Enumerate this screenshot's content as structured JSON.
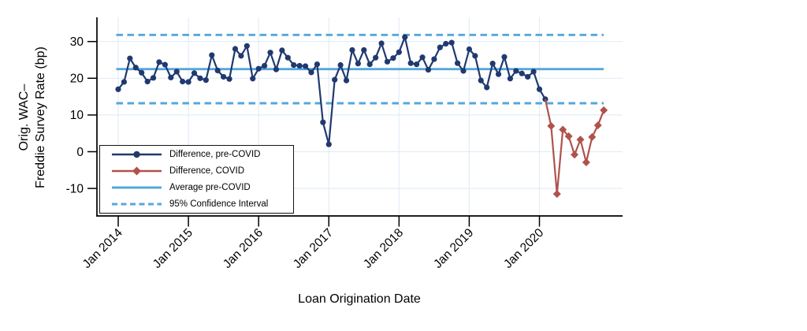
{
  "figure": {
    "x_axis_title": "Loan Origination Date",
    "y_axis_title_line1": "Orig. WAC–",
    "y_axis_title_line2": "Freddie Survey Rate (bp)"
  },
  "legend": {
    "items": [
      {
        "label": "Difference, pre-COVID",
        "symbol": "line-circle",
        "color": "#20396f"
      },
      {
        "label": "Difference, COVID",
        "symbol": "line-diamond",
        "color": "#b0524c"
      },
      {
        "label": "Average pre-COVID",
        "symbol": "line-solid",
        "color": "#55a7db"
      },
      {
        "label": "95% Confidence Interval",
        "symbol": "line-dashed",
        "color": "#55a7db"
      }
    ]
  },
  "colors": {
    "pre_covid": "#20396f",
    "covid": "#b0524c",
    "reference": "#55a7db",
    "gridline": "#e2edf7",
    "axis": "#000000"
  },
  "chart_data": {
    "type": "line",
    "title": "",
    "xlabel": "Loan Origination Date",
    "ylabel": "Orig. WAC–Freddie Survey Rate (bp)",
    "x_tick_labels": [
      "Jan 2014",
      "Jan 2015",
      "Jan 2016",
      "Jan 2017",
      "Jan 2018",
      "Jan 2019",
      "Jan 2020"
    ],
    "y_ticks": [
      30,
      20,
      10,
      0,
      -10
    ],
    "y_axis_range": [
      -17.5,
      36.6
    ],
    "grid": true,
    "legend_position": "bottom-left-inside",
    "series": [
      {
        "name": "Difference, pre-COVID",
        "marker": "circle",
        "color": "#20396f",
        "start": "2014-01",
        "frequency": "monthly",
        "values": [
          17.0,
          19.0,
          25.4,
          22.9,
          21.5,
          19.1,
          20.1,
          24.4,
          23.7,
          20.2,
          21.8,
          19.1,
          19.0,
          21.4,
          20.0,
          19.5,
          26.3,
          22.1,
          20.4,
          19.8,
          28.0,
          26.1,
          28.8,
          19.9,
          22.6,
          23.4,
          27.0,
          22.4,
          27.6,
          25.6,
          23.6,
          23.4,
          23.3,
          21.6,
          23.8,
          8.0,
          2.0,
          19.6,
          23.6,
          19.4,
          27.7,
          24.0,
          27.7,
          23.8,
          25.6,
          29.5,
          24.5,
          25.5,
          27.1,
          31.2,
          24.1,
          23.8,
          25.7,
          22.3,
          25.2,
          28.4,
          29.4,
          29.7,
          24.1,
          22.0,
          27.9,
          26.1,
          19.4,
          17.5,
          24.0,
          21.1,
          25.8,
          19.9,
          22.0,
          21.3,
          20.4,
          21.8,
          17.0,
          14.3
        ]
      },
      {
        "name": "Difference, COVID",
        "marker": "diamond",
        "color": "#b0524c",
        "start": "2020-03",
        "frequency": "monthly",
        "connects_from_previous": true,
        "values": [
          7.0,
          -11.5,
          6.0,
          4.2,
          -0.8,
          3.3,
          -2.9,
          4.0,
          7.2,
          11.3
        ]
      },
      {
        "name": "Average pre-COVID",
        "type": "hline",
        "color": "#55a7db",
        "value": 22.5
      },
      {
        "name": "95% Confidence Interval",
        "type": "hline-pair",
        "color": "#55a7db",
        "dashed": true,
        "values": [
          31.8,
          13.2
        ]
      }
    ]
  }
}
